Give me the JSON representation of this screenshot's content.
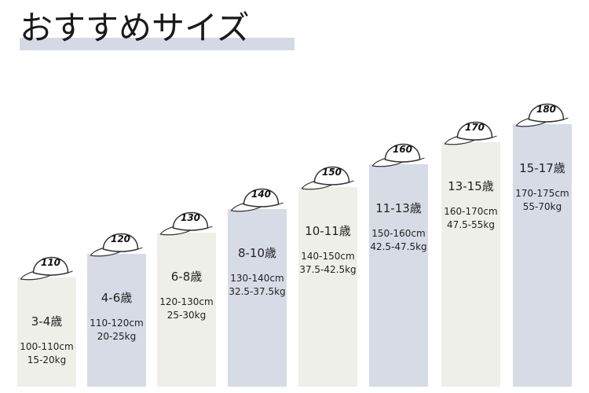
{
  "header": {
    "title": "おすすめサイズ"
  },
  "items": [
    {
      "size": "110",
      "age": "3-4歳",
      "height": "100-110cm",
      "weight": "15-20kg"
    },
    {
      "size": "120",
      "age": "4-6歳",
      "height": "110-120cm",
      "weight": "20-25kg"
    },
    {
      "size": "130",
      "age": "6-8歳",
      "height": "120-130cm",
      "weight": "25-30kg"
    },
    {
      "size": "140",
      "age": "8-10歳",
      "height": "130-140cm",
      "weight": "32.5-37.5kg"
    },
    {
      "size": "150",
      "age": "10-11歳",
      "height": "140-150cm",
      "weight": "37.5-42.5kg"
    },
    {
      "size": "160",
      "age": "11-13歳",
      "height": "150-160cm",
      "weight": "42.5-47.5kg"
    },
    {
      "size": "170",
      "age": "13-15歳",
      "height": "160-170cm",
      "weight": "47.5-55kg"
    },
    {
      "size": "180",
      "age": "15-17歳",
      "height": "170-175cm",
      "weight": "55-70kg"
    }
  ]
}
